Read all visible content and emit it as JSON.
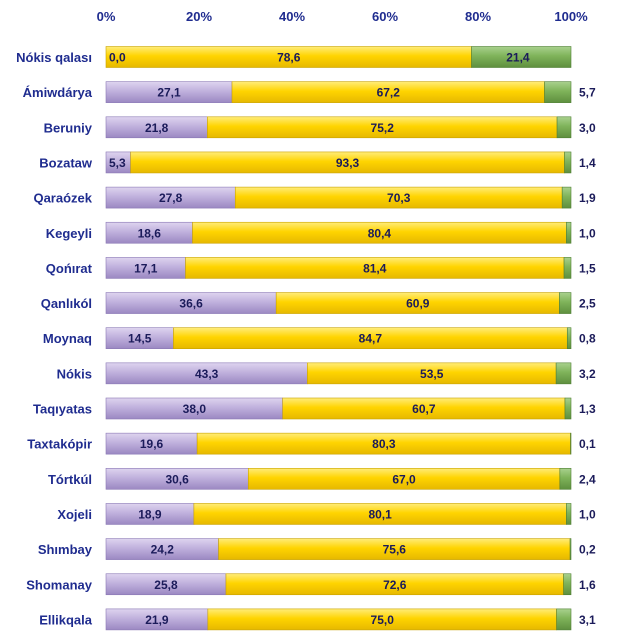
{
  "chart_data": {
    "type": "bar",
    "orientation": "horizontal",
    "stacked": true,
    "percent_stacked": true,
    "categories": [
      "Nókis qalası",
      "Ámiwdárya",
      "Beruniy",
      "Bozataw",
      "Qaraózek",
      "Kegeyli",
      "Qońırat",
      "Qanlıkól",
      "Moynaq",
      "Nókis",
      "Taqıyatas",
      "Taxtakópir",
      "Tórtkúl",
      "Xojeli",
      "Shımbay",
      "Shomanay",
      "Ellikqala"
    ],
    "series": [
      {
        "values": [
          0.0,
          27.1,
          21.8,
          5.3,
          27.8,
          18.6,
          17.1,
          36.6,
          14.5,
          43.3,
          38.0,
          19.6,
          30.6,
          18.9,
          24.2,
          25.8,
          21.9
        ],
        "color": "#b4a3d4"
      },
      {
        "values": [
          78.6,
          67.2,
          75.2,
          93.3,
          70.3,
          80.4,
          81.4,
          60.9,
          84.7,
          53.5,
          60.7,
          80.3,
          67.0,
          80.1,
          75.6,
          72.6,
          75.0
        ],
        "color": "#ffd400"
      },
      {
        "values": [
          21.4,
          5.7,
          3.0,
          1.4,
          1.9,
          1.0,
          1.5,
          2.5,
          0.8,
          3.2,
          1.3,
          0.1,
          2.4,
          1.0,
          0.2,
          1.6,
          3.1
        ],
        "color": "#77ac50"
      }
    ],
    "x_ticks": [
      "0%",
      "20%",
      "40%",
      "60%",
      "80%",
      "100%"
    ],
    "xlim": [
      0,
      100
    ],
    "title": "",
    "xlabel": "",
    "ylabel": ""
  }
}
